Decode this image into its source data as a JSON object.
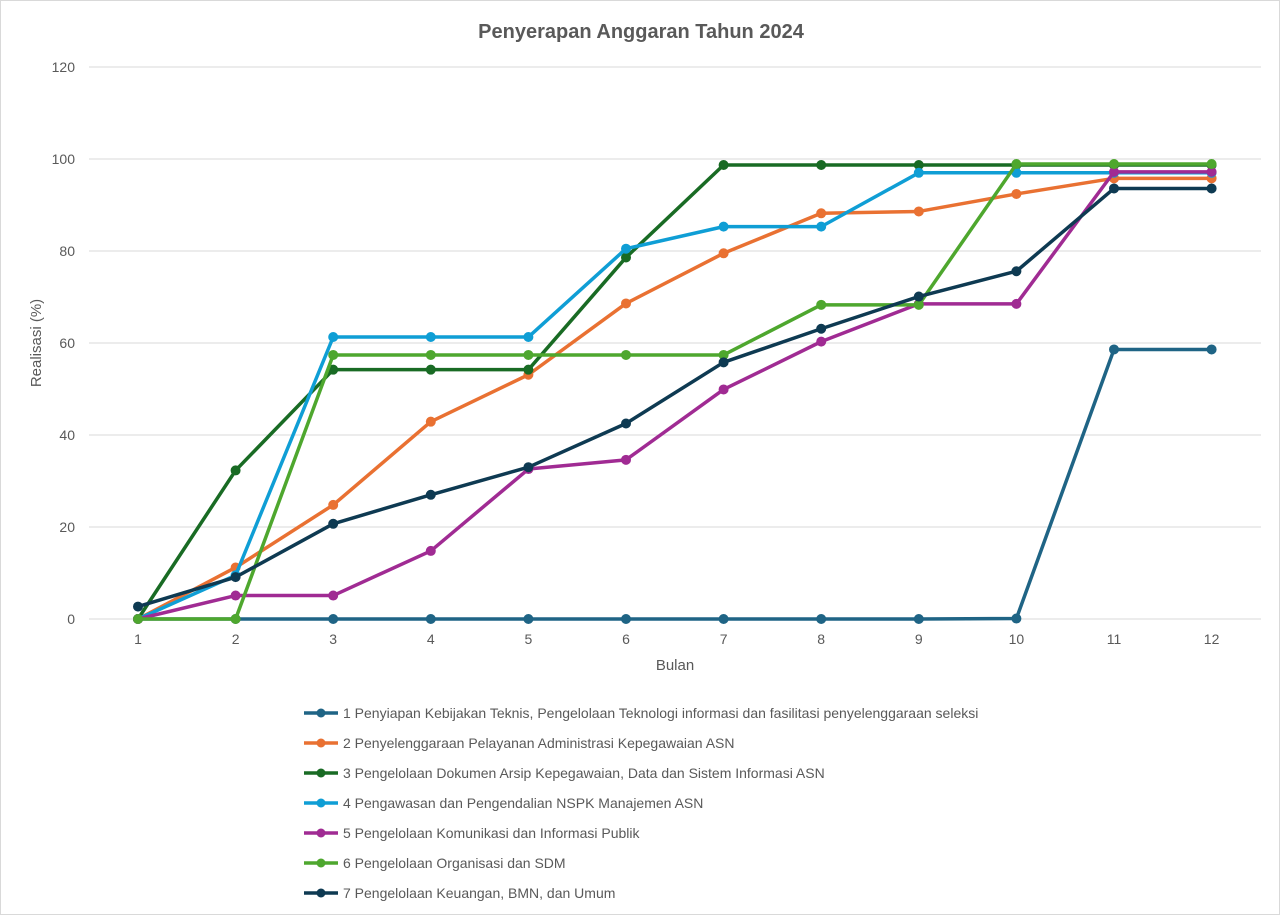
{
  "colors": {
    "text": "#595959",
    "grid": "#d9d9d9",
    "background": "#ffffff"
  },
  "chart_data": {
    "type": "line",
    "title": "Penyerapan Anggaran Tahun 2024",
    "xlabel": "Bulan",
    "ylabel": "Realisasi (%)",
    "x": [
      1,
      2,
      3,
      4,
      5,
      6,
      7,
      8,
      9,
      10,
      11,
      12
    ],
    "categories": [
      "1",
      "2",
      "3",
      "4",
      "5",
      "6",
      "7",
      "8",
      "9",
      "10",
      "11",
      "12"
    ],
    "ylim": [
      0,
      120
    ],
    "yticks": [
      "0",
      "20",
      "40",
      "60",
      "80",
      "100",
      "120"
    ],
    "grid": true,
    "legend_position": "bottom",
    "series": [
      {
        "name": "1 Penyiapan Kebijakan Teknis, Pengelolaan Teknologi informasi dan fasilitasi penyelenggaraan seleksi",
        "color": "#1f6485",
        "values": [
          0,
          0,
          0,
          0,
          0,
          0,
          0,
          0,
          0,
          0.1,
          58.6,
          58.6
        ]
      },
      {
        "name": "2 Penyelenggaraan Pelayanan Administrasi Kepegawaian ASN",
        "color": "#e97132",
        "values": [
          0,
          11.2,
          24.8,
          42.9,
          53.1,
          68.6,
          79.5,
          88.2,
          88.6,
          92.4,
          95.8,
          95.8
        ]
      },
      {
        "name": "3 Pengelolaan Dokumen Arsip Kepegawaian, Data dan Sistem Informasi ASN",
        "color": "#196b24",
        "values": [
          0,
          32.3,
          54.2,
          54.2,
          54.2,
          78.6,
          98.7,
          98.7,
          98.7,
          98.7,
          98.7,
          98.7
        ]
      },
      {
        "name": "4 Pengawasan dan Pengendalian NSPK Manajemen ASN",
        "color": "#0f9ed5",
        "values": [
          0,
          9.5,
          61.3,
          61.3,
          61.3,
          80.5,
          85.3,
          85.3,
          97.0,
          97.0,
          97.0,
          97.0
        ]
      },
      {
        "name": "5 Pengelolaan Komunikasi dan Informasi Publik",
        "color": "#a02b93",
        "values": [
          0,
          5.1,
          5.1,
          14.8,
          32.6,
          34.6,
          49.9,
          60.3,
          68.5,
          68.5,
          97.2,
          97.2
        ]
      },
      {
        "name": "6 Pengelolaan Organisasi dan SDM",
        "color": "#4ea72e",
        "values": [
          0,
          0,
          57.4,
          57.4,
          57.4,
          57.4,
          57.4,
          68.3,
          68.3,
          98.9,
          98.9,
          98.9
        ]
      },
      {
        "name": "7 Pengelolaan Keuangan, BMN, dan Umum",
        "color": "#0e3a52",
        "values": [
          2.7,
          9.1,
          20.7,
          27.0,
          33.0,
          42.5,
          55.8,
          63.1,
          70.1,
          75.6,
          93.6,
          93.6
        ]
      }
    ]
  }
}
